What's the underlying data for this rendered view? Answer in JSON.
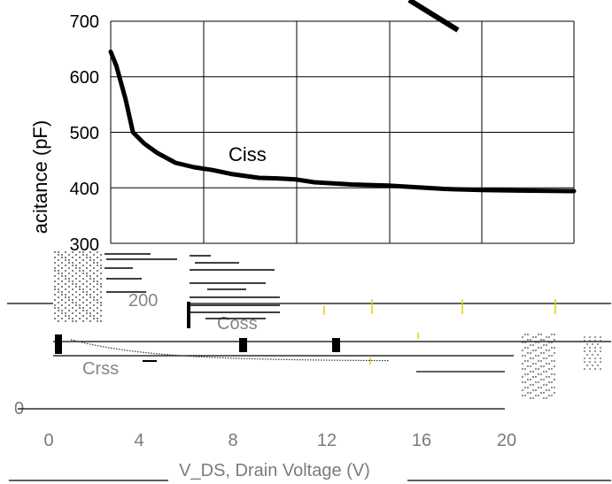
{
  "chart_data": {
    "type": "line",
    "ylabel": "acitance (pF)",
    "xlabel": "V_DS, Drain Voltage (V)",
    "ylim": [
      300,
      700
    ],
    "xlim": [
      0,
      25
    ],
    "y_ticks": [
      "300",
      "400",
      "500",
      "600",
      "700"
    ],
    "x_ticks_lower": [
      "0",
      "4",
      "8",
      "12",
      "16",
      "20"
    ],
    "lower_y_ticks": [
      "0"
    ],
    "grid": true,
    "series": [
      {
        "name": "Ciss",
        "x": [
          0,
          0.3,
          0.8,
          1.2,
          1.8,
          2.5,
          3.5,
          4.5,
          5.5,
          6.5,
          8,
          9,
          10,
          11,
          12,
          13,
          14,
          15,
          16,
          18,
          20,
          22,
          25
        ],
        "y": [
          645,
          620,
          560,
          500,
          480,
          463,
          445,
          437,
          432,
          425,
          418,
          417,
          415,
          410,
          408,
          406,
          405,
          404,
          402,
          398,
          396,
          395,
          394
        ]
      }
    ],
    "annotations": [
      {
        "text": "Ciss"
      }
    ],
    "fragments": [
      "200",
      "Crss",
      "Coss"
    ]
  }
}
